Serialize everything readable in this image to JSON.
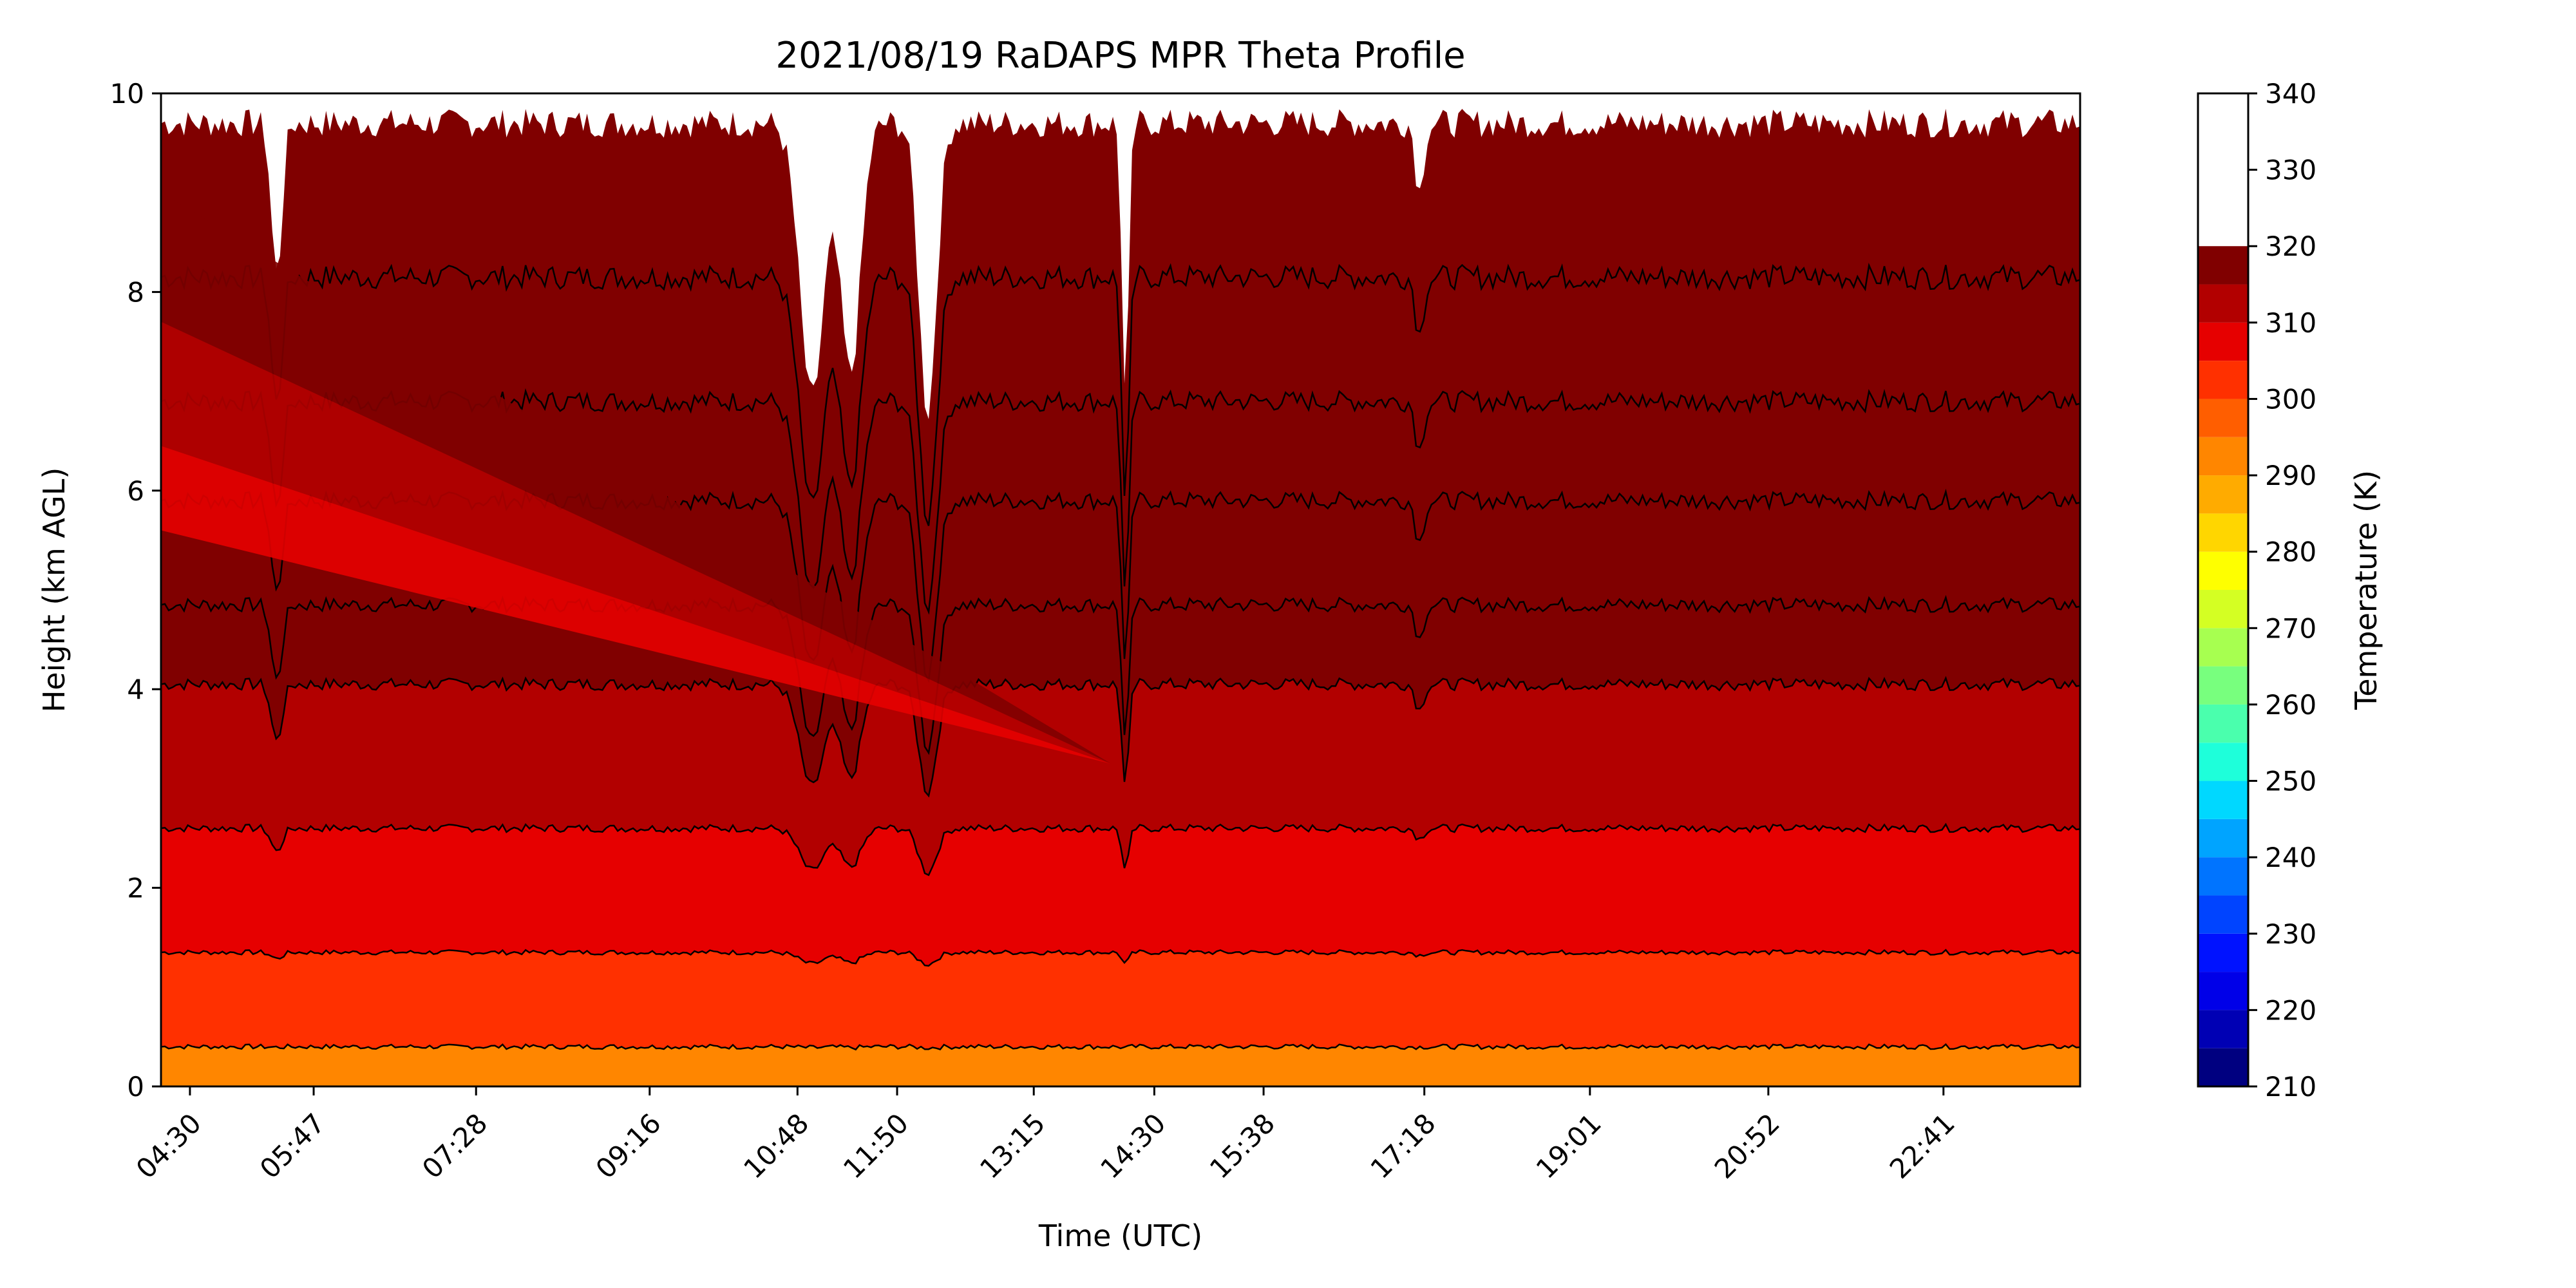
{
  "chart_data": {
    "type": "contourf",
    "title": "2021/08/19 RaDAPS MPR Theta Profile",
    "xlabel": "Time (UTC)",
    "ylabel": "Height (km AGL)",
    "ylim": [
      0,
      10
    ],
    "y_ticks": [
      0,
      2,
      4,
      6,
      8,
      10
    ],
    "x_ticks": [
      "04:30",
      "05:47",
      "07:28",
      "09:16",
      "10:48",
      "11:50",
      "13:15",
      "14:30",
      "15:38",
      "17:18",
      "19:01",
      "20:52",
      "22:41"
    ],
    "x_tick_hours": [
      4.5,
      5.783,
      7.467,
      9.267,
      10.8,
      11.833,
      13.25,
      14.5,
      15.633,
      17.3,
      19.017,
      20.867,
      22.683
    ],
    "x_range_hours": [
      4.2,
      24.1
    ],
    "colorbar": {
      "label": "Temperature (K)",
      "min": 210,
      "max": 340,
      "step": 5,
      "tick_values": [
        210,
        220,
        230,
        240,
        250,
        260,
        270,
        280,
        290,
        300,
        310,
        320,
        330,
        340
      ],
      "colors": [
        "#000080",
        "#0000b4",
        "#0000e8",
        "#0012ff",
        "#0044ff",
        "#0074ff",
        "#00a4ff",
        "#00d8ff",
        "#1effda",
        "#4affad",
        "#78ff7e",
        "#a7ff50",
        "#d4ff23",
        "#feff00",
        "#ffd600",
        "#ffab00",
        "#ff8600",
        "#ff5e00",
        "#ff3000",
        "#e60000",
        "#b20000",
        "#800000"
      ]
    },
    "contour_levels_approx_km": [
      {
        "theta": 295,
        "height": 0.4
      },
      {
        "theta": 300,
        "height": 1.35
      },
      {
        "theta": 305,
        "height": 2.6
      },
      {
        "theta": 310,
        "height": 4.05
      },
      {
        "theta": 315,
        "height": 4.85
      },
      {
        "theta": 320,
        "height": 5.9
      },
      {
        "theta": 325,
        "height": 6.9
      },
      {
        "theta": 330,
        "height": 8.15
      },
      {
        "theta": 335,
        "height": 9.7
      }
    ]
  }
}
